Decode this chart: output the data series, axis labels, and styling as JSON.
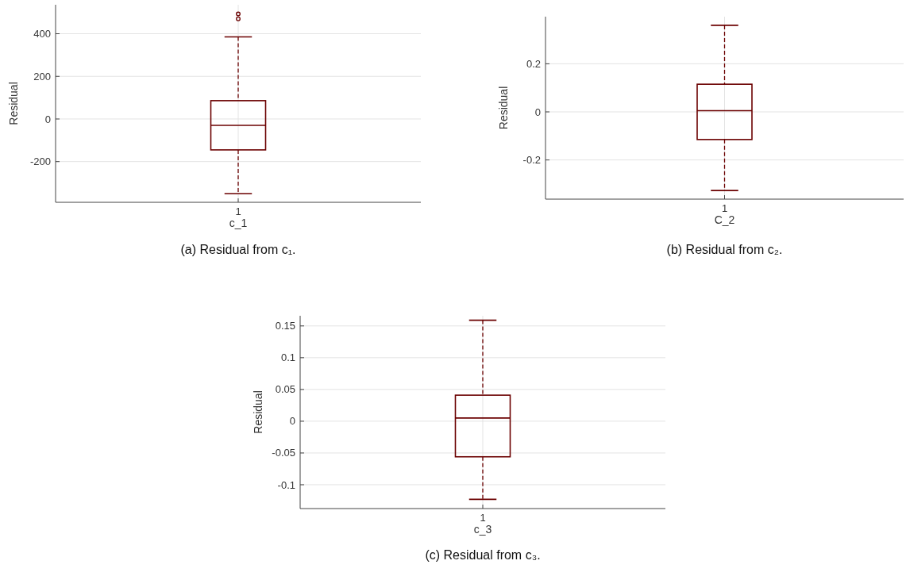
{
  "chart_data": [
    {
      "type": "box",
      "title": "(a) Residual from c₁.",
      "xlabel": "c_1",
      "ylabel": "Residual",
      "categories": [
        "1"
      ],
      "grid": true,
      "ylim": [
        -391,
        536
      ],
      "yticks": [
        -200,
        0,
        200,
        400
      ],
      "series": [
        {
          "color": "#6b0000",
          "boxes": [
            {
              "low": -350,
              "q1": -145,
              "median": -30,
              "q3": 86,
              "high": 385,
              "outliers": [
                470,
                493
              ]
            }
          ]
        }
      ]
    },
    {
      "type": "box",
      "title": "(b) Residual from c₂.",
      "xlabel": "C_2",
      "ylabel": "Residual",
      "categories": [
        "1"
      ],
      "grid": true,
      "ylim": [
        -0.363,
        0.396
      ],
      "yticks": [
        -0.2,
        0,
        0.2
      ],
      "series": [
        {
          "color": "#6b0000",
          "boxes": [
            {
              "low": -0.327,
              "q1": -0.115,
              "median": 0.005,
              "q3": 0.115,
              "high": 0.36
            }
          ]
        }
      ]
    },
    {
      "type": "box",
      "title": "(c) Residual from c₃.",
      "xlabel": "c_3",
      "ylabel": "Residual",
      "categories": [
        "1"
      ],
      "grid": true,
      "ylim": [
        -0.1375,
        0.166
      ],
      "yticks": [
        -0.1,
        -0.05,
        0,
        0.05,
        0.1,
        0.15
      ],
      "series": [
        {
          "color": "#6b0000",
          "boxes": [
            {
              "low": -0.123,
              "q1": -0.056,
              "median": 0.005,
              "q3": 0.041,
              "high": 0.159
            }
          ]
        }
      ]
    }
  ]
}
